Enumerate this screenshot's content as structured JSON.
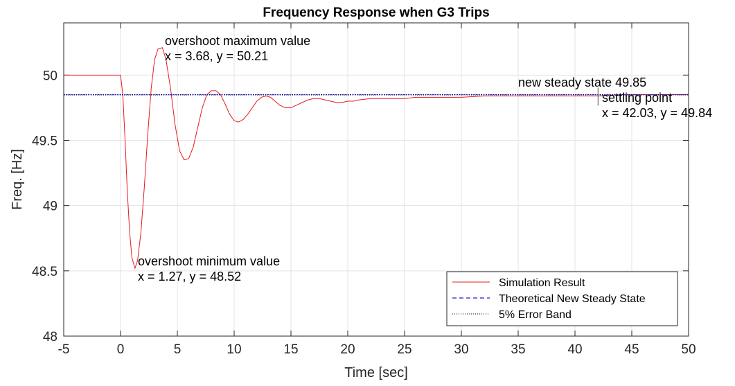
{
  "chart_data": {
    "type": "line",
    "title": "Frequency Response when G3 Trips",
    "xlabel": "Time [sec]",
    "ylabel": "Freq. [Hz]",
    "xlim": [
      -5,
      50
    ],
    "ylim": [
      48,
      50.4
    ],
    "x_ticks": [
      -5,
      0,
      5,
      10,
      15,
      20,
      25,
      30,
      35,
      40,
      45,
      50
    ],
    "y_ticks": [
      48,
      48.5,
      49,
      49.5,
      50
    ],
    "grid": true,
    "legend_position": "bottom-right",
    "series": [
      {
        "name": "Simulation Result",
        "color": "#e8191a",
        "style": "solid",
        "x": [
          -5,
          0,
          0.2,
          0.4,
          0.6,
          0.8,
          1.0,
          1.27,
          1.5,
          1.8,
          2.1,
          2.4,
          2.7,
          3.0,
          3.3,
          3.68,
          4.0,
          4.4,
          4.8,
          5.2,
          5.6,
          6.0,
          6.4,
          6.8,
          7.2,
          7.6,
          8.0,
          8.4,
          8.8,
          9.2,
          9.6,
          10.0,
          10.4,
          10.8,
          11.2,
          11.6,
          12.0,
          12.4,
          12.8,
          13.2,
          13.6,
          14.0,
          14.5,
          15.0,
          15.5,
          16.0,
          16.5,
          17.0,
          17.5,
          18.0,
          18.5,
          19.0,
          19.5,
          20.0,
          20.5,
          21.0,
          22.0,
          23.0,
          24.0,
          25.0,
          26.0,
          27.0,
          28.0,
          29.0,
          30.0,
          32.0,
          34.0,
          36.0,
          38.0,
          40.0,
          42.03,
          44.0,
          46.0,
          48.0,
          50.0
        ],
        "y": [
          50.0,
          50.0,
          49.85,
          49.5,
          49.1,
          48.8,
          48.6,
          48.52,
          48.58,
          48.8,
          49.15,
          49.55,
          49.9,
          50.12,
          50.2,
          50.21,
          50.12,
          49.9,
          49.62,
          49.42,
          49.35,
          49.36,
          49.45,
          49.6,
          49.75,
          49.85,
          49.88,
          49.88,
          49.85,
          49.78,
          49.7,
          49.65,
          49.64,
          49.66,
          49.7,
          49.75,
          49.8,
          49.83,
          49.84,
          49.83,
          49.8,
          49.77,
          49.75,
          49.75,
          49.77,
          49.79,
          49.81,
          49.82,
          49.82,
          49.81,
          49.8,
          49.79,
          49.79,
          49.8,
          49.8,
          49.81,
          49.82,
          49.82,
          49.82,
          49.82,
          49.83,
          49.83,
          49.83,
          49.83,
          49.83,
          49.84,
          49.84,
          49.84,
          49.84,
          49.84,
          49.84,
          49.85,
          49.85,
          49.85,
          49.85
        ]
      },
      {
        "name": "Theoretical New Steady State",
        "color": "#1f1fdc",
        "style": "dashed",
        "x": [
          -5,
          50
        ],
        "y": [
          49.85,
          49.85
        ]
      },
      {
        "name": "5% Error Band",
        "color": "#000000",
        "style": "dotted",
        "x": [
          -5,
          50
        ],
        "y": [
          49.848,
          49.848
        ]
      }
    ],
    "annotations": [
      {
        "lines": [
          "overshoot maximum value",
          "x = 3.68, y = 50.21"
        ],
        "point": [
          3.68,
          50.21
        ]
      },
      {
        "lines": [
          "overshoot minimum value",
          "x = 1.27, y = 48.52"
        ],
        "point": [
          1.27,
          48.52
        ]
      },
      {
        "lines": [
          "new steady state 49.85"
        ],
        "point": [
          35.0,
          49.85
        ]
      },
      {
        "lines": [
          "settling point",
          "x = 42.03, y = 49.84"
        ],
        "point": [
          42.03,
          49.84
        ]
      }
    ]
  }
}
